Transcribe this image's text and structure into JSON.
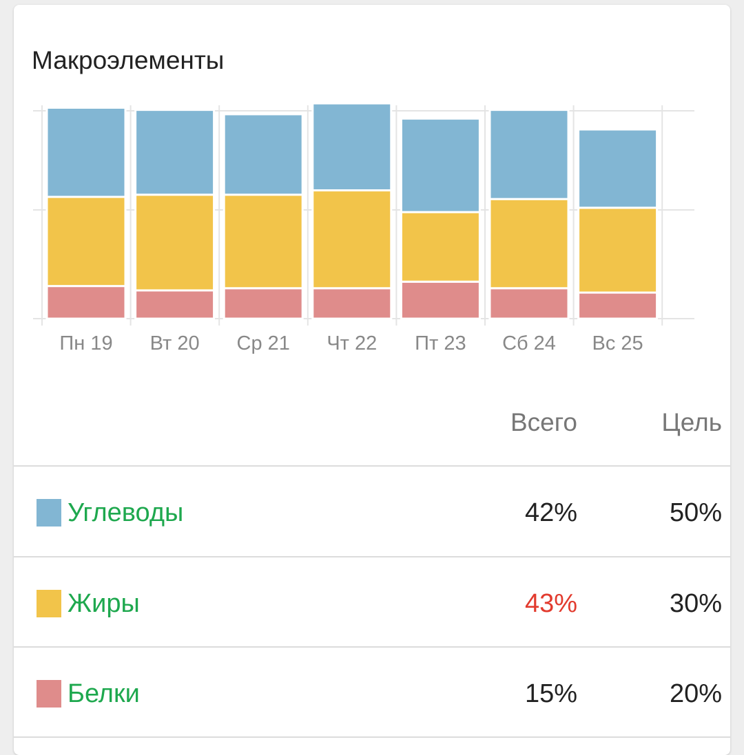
{
  "card": {
    "title": "Макроэлементы"
  },
  "colors": {
    "carbs": "#82b6d3",
    "fat": "#f2c44a",
    "protein": "#df8c8b",
    "name_text": "#1ea84e",
    "over_text": "#e23b2e"
  },
  "chart_data": {
    "type": "bar",
    "stacked": true,
    "categories": [
      "Пн 19",
      "Вт 20",
      "Ср 21",
      "Чт 22",
      "Пт 23",
      "Сб 24",
      "Вс 25"
    ],
    "series": [
      {
        "name": "Белки",
        "color": "#df8c8b",
        "values": [
          15,
          13,
          14,
          14,
          17,
          14,
          12
        ]
      },
      {
        "name": "Жиры",
        "color": "#f2c44a",
        "values": [
          41,
          44,
          43,
          45,
          32,
          41,
          39
        ]
      },
      {
        "name": "Углеводы",
        "color": "#82b6d3",
        "values": [
          41,
          39,
          37,
          40,
          43,
          41,
          36
        ]
      }
    ],
    "ylim": [
      0,
      100
    ],
    "grid": true
  },
  "table": {
    "header_total": "Всего",
    "header_goal": "Цель",
    "rows": [
      {
        "name": "Углеводы",
        "total": "42%",
        "goal": "50%",
        "color": "#82b6d3",
        "over": false
      },
      {
        "name": "Жиры",
        "total": "43%",
        "goal": "30%",
        "color": "#f2c44a",
        "over": true
      },
      {
        "name": "Белки",
        "total": "15%",
        "goal": "20%",
        "color": "#df8c8b",
        "over": false
      }
    ]
  }
}
